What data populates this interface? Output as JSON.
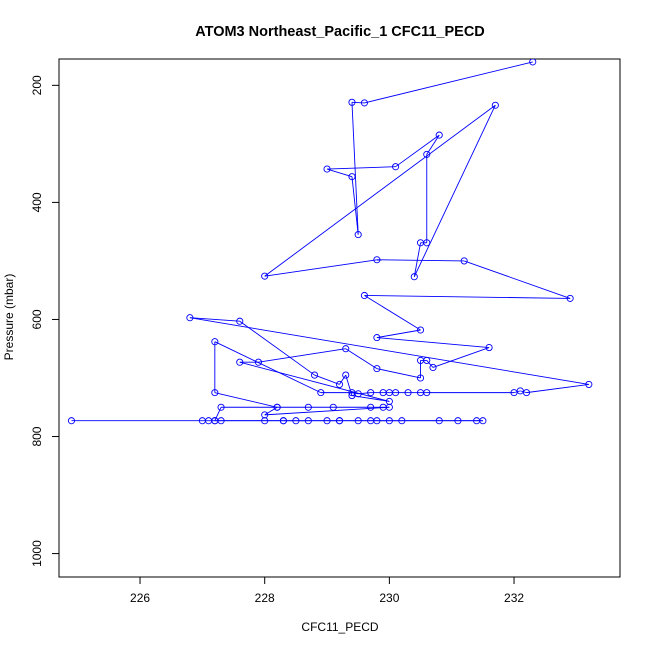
{
  "chart_data": {
    "type": "line",
    "title": "ATOM3 Northeast_Pacific_1 CFC11_PECD",
    "xlabel": "CFC11_PECD",
    "ylabel": "Pressure (mbar)",
    "xlim": [
      224.7,
      233.7
    ],
    "ylim": [
      1040,
      155
    ],
    "y_reversed": true,
    "x_ticks": [
      226,
      228,
      230,
      232
    ],
    "y_ticks": [
      200,
      400,
      600,
      800,
      1000
    ],
    "grid": false,
    "legend": "none",
    "series_color": "#0000ff",
    "marker": "open-circle",
    "series": [
      {
        "values": [
          [
            224.9,
            773
          ],
          [
            227.0,
            773
          ],
          [
            227.1,
            773
          ],
          [
            227.2,
            773
          ],
          [
            227.3,
            773
          ],
          [
            228.0,
            773
          ],
          [
            228.3,
            773
          ],
          [
            228.5,
            773
          ],
          [
            228.7,
            773
          ],
          [
            229.0,
            773
          ],
          [
            229.2,
            773
          ],
          [
            229.5,
            773
          ],
          [
            229.8,
            773
          ],
          [
            230.0,
            773
          ],
          [
            230.2,
            773
          ],
          [
            230.8,
            773
          ],
          [
            231.1,
            773
          ],
          [
            231.4,
            773
          ],
          [
            231.5,
            773
          ],
          [
            229.7,
            773
          ],
          [
            229.2,
            773
          ],
          [
            228.3,
            773
          ],
          [
            227.2,
            773
          ],
          [
            227.3,
            750
          ],
          [
            228.2,
            750
          ],
          [
            228.7,
            750
          ],
          [
            229.1,
            750
          ],
          [
            229.7,
            750
          ],
          [
            229.9,
            750
          ],
          [
            230.0,
            750
          ],
          [
            228.0,
            763
          ],
          [
            228.2,
            750
          ],
          [
            227.2,
            725
          ],
          [
            227.2,
            638
          ],
          [
            228.9,
            725
          ],
          [
            229.4,
            725
          ],
          [
            229.5,
            727
          ],
          [
            229.7,
            725
          ],
          [
            229.9,
            725
          ],
          [
            230.0,
            725
          ],
          [
            230.1,
            725
          ],
          [
            230.3,
            725
          ],
          [
            230.5,
            725
          ],
          [
            230.6,
            725
          ],
          [
            232.0,
            725
          ],
          [
            232.1,
            722
          ],
          [
            232.2,
            725
          ],
          [
            233.2,
            711
          ],
          [
            226.8,
            597
          ],
          [
            227.6,
            603
          ],
          [
            228.8,
            695
          ],
          [
            229.2,
            711
          ],
          [
            229.3,
            695
          ],
          [
            229.4,
            730
          ],
          [
            230.0,
            740
          ],
          [
            227.6,
            673
          ],
          [
            227.9,
            673
          ],
          [
            229.3,
            650
          ],
          [
            229.8,
            684
          ],
          [
            230.5,
            700
          ],
          [
            230.5,
            670
          ],
          [
            230.6,
            670
          ],
          [
            230.7,
            682
          ],
          [
            231.6,
            648
          ],
          [
            229.8,
            631
          ],
          [
            230.5,
            618
          ],
          [
            229.6,
            559
          ],
          [
            232.9,
            564
          ],
          [
            231.2,
            500
          ],
          [
            229.8,
            498
          ],
          [
            228.0,
            526
          ],
          [
            231.7,
            234
          ],
          [
            230.4,
            527
          ],
          [
            230.5,
            469
          ],
          [
            230.6,
            469
          ],
          [
            230.6,
            318
          ],
          [
            230.8,
            285
          ],
          [
            230.1,
            339
          ],
          [
            229.0,
            343
          ],
          [
            229.4,
            356
          ],
          [
            229.5,
            455
          ],
          [
            229.4,
            229
          ],
          [
            229.6,
            230
          ],
          [
            232.3,
            160
          ]
        ]
      }
    ]
  }
}
